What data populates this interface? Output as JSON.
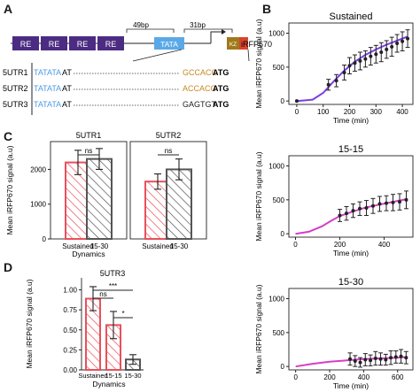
{
  "panels": {
    "A": "A",
    "B": "B",
    "C": "C",
    "D": "D"
  },
  "construct": {
    "re_label": "RE",
    "spacer1": "49bp",
    "spacer2": "31bp",
    "tata": "TATA",
    "kz": "KZ",
    "reporter": "iRFP670",
    "colors": {
      "re": "#4b2c82",
      "tata": "#5aa9e6",
      "kz": "#a07a1a",
      "reporter": "#d9442b"
    },
    "utrs": [
      {
        "name": "5UTR1",
        "tata": "TATATA",
        "mid": "AT",
        "kozak": "GCCACC",
        "start": "ATG",
        "kozak_color": "#c58a1f"
      },
      {
        "name": "5UTR2",
        "tata": "TATATA",
        "mid": "AT",
        "kozak": "ACCACC",
        "start": "ATG",
        "kozak_color": "#c58a1f"
      },
      {
        "name": "5UTR3",
        "tata": "TATATA",
        "mid": "AT",
        "kozak": "GAGTGT",
        "start": "ATG",
        "kozak_color": "#222222"
      }
    ]
  },
  "chart_data": [
    {
      "id": "B-sustained",
      "type": "line",
      "title": "Sustained",
      "xlabel": "Time (min)",
      "ylabel": "Mean iRFP670 signal (a.u)",
      "xlim": [
        -30,
        440
      ],
      "ylim": [
        -50,
        1150
      ],
      "xticks": [
        0,
        100,
        200,
        300,
        400
      ],
      "yticks": [
        0,
        500,
        1000
      ],
      "line_color": "#7b3fe4",
      "curve": {
        "x": [
          0,
          60,
          100,
          140,
          180,
          220,
          260,
          300,
          340,
          380,
          420
        ],
        "y": [
          0,
          20,
          120,
          290,
          450,
          580,
          680,
          760,
          830,
          890,
          950
        ]
      },
      "points": {
        "x": [
          0,
          120,
          150,
          180,
          200,
          220,
          240,
          260,
          280,
          300,
          320,
          340,
          360,
          380,
          400,
          420
        ],
        "y": [
          0,
          240,
          300,
          420,
          520,
          560,
          590,
          620,
          660,
          690,
          720,
          760,
          800,
          850,
          880,
          920
        ],
        "err": [
          0,
          80,
          90,
          110,
          120,
          120,
          130,
          120,
          130,
          130,
          140,
          130,
          140,
          130,
          140,
          130
        ]
      }
    },
    {
      "id": "B-15-15",
      "type": "line",
      "title": "15-15",
      "xlabel": "Time (min)",
      "ylabel": "Mean iRFP670 signal (a.u)",
      "xlim": [
        -30,
        530
      ],
      "ylim": [
        -50,
        1150
      ],
      "xticks": [
        0,
        200,
        400
      ],
      "yticks": [
        0,
        500,
        1000
      ],
      "line_color": "#d63ec5",
      "curve": {
        "x": [
          0,
          60,
          120,
          160,
          200,
          260,
          320,
          380,
          440,
          500
        ],
        "y": [
          0,
          30,
          110,
          190,
          260,
          330,
          390,
          430,
          470,
          510
        ]
      },
      "points": {
        "x": [
          200,
          230,
          260,
          290,
          320,
          350,
          380,
          410,
          440,
          470,
          500
        ],
        "y": [
          270,
          300,
          340,
          370,
          380,
          410,
          440,
          450,
          460,
          470,
          500
        ],
        "err": [
          90,
          100,
          100,
          100,
          110,
          110,
          110,
          110,
          120,
          120,
          130
        ]
      }
    },
    {
      "id": "B-15-30",
      "type": "line",
      "title": "15-30",
      "xlabel": "Time (min)",
      "ylabel": "Mean iRFP670 signal (a.u)",
      "xlim": [
        -40,
        690
      ],
      "ylim": [
        -50,
        1150
      ],
      "xticks": [
        0,
        200,
        400,
        600
      ],
      "yticks": [
        0,
        500,
        1000
      ],
      "line_color": "#d63ec5",
      "curve": {
        "x": [
          0,
          100,
          200,
          300,
          400,
          500,
          600,
          660
        ],
        "y": [
          0,
          40,
          70,
          90,
          110,
          120,
          130,
          140
        ]
      },
      "points": {
        "x": [
          320,
          350,
          380,
          410,
          440,
          470,
          500,
          530,
          560,
          590,
          620,
          650
        ],
        "y": [
          110,
          80,
          60,
          100,
          90,
          120,
          110,
          100,
          130,
          140,
          150,
          130
        ],
        "err": [
          90,
          80,
          70,
          90,
          80,
          100,
          90,
          80,
          100,
          90,
          100,
          90
        ]
      }
    },
    {
      "id": "C",
      "type": "bar",
      "ylabel": "Mean iRFP670 signal (a.u)",
      "ylim": [
        0,
        2800
      ],
      "yticks": [
        0,
        1000,
        2000
      ],
      "subplots": [
        {
          "title": "5UTR1",
          "categories": [
            "Sustained",
            "15-30"
          ],
          "values": [
            2200,
            2300
          ],
          "err": [
            350,
            300
          ],
          "sig": "ns"
        },
        {
          "title": "5UTR2",
          "categories": [
            "Sustained",
            "15-30"
          ],
          "values": [
            1650,
            2000
          ],
          "err": [
            220,
            300
          ],
          "sig": "ns"
        }
      ],
      "xlabel": "Dynamics",
      "colors": [
        "#e8505b",
        "#555555"
      ]
    },
    {
      "id": "D",
      "type": "bar",
      "title": "5UTR3",
      "ylabel": "Mean iRFP670 signal (a.u)",
      "ylim": [
        0,
        1150
      ],
      "yticks": [
        0,
        250,
        500,
        750,
        1000
      ],
      "yticklabels": [
        "0.00",
        "0.25",
        "0.50",
        "0.75",
        "1.00"
      ],
      "categories": [
        "Sustained",
        "15-15",
        "15-30"
      ],
      "values": [
        890,
        560,
        130
      ],
      "err": [
        150,
        170,
        60
      ],
      "xlabel": "Dynamics",
      "colors": [
        "#e8505b",
        "#e8505b",
        "#555555"
      ],
      "brackets": [
        {
          "from": 0,
          "to": 1,
          "label": "ns"
        },
        {
          "from": 0,
          "to": 2,
          "label": "***"
        },
        {
          "from": 1,
          "to": 2,
          "label": "*"
        }
      ]
    }
  ]
}
